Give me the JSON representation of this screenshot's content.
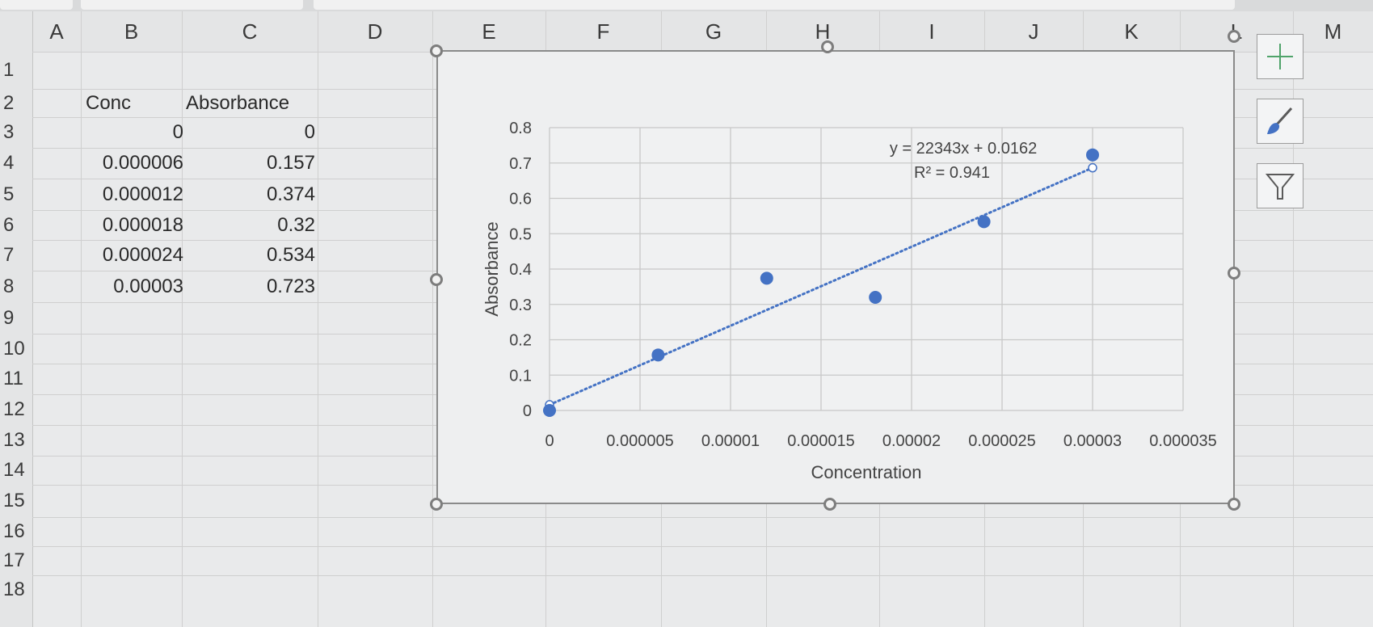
{
  "columns": [
    "A",
    "B",
    "C",
    "D",
    "E",
    "F",
    "G",
    "H",
    "I",
    "J",
    "K",
    "L",
    "M"
  ],
  "rows": [
    "1",
    "2",
    "3",
    "4",
    "5",
    "6",
    "7",
    "8",
    "9",
    "10",
    "11",
    "12",
    "13",
    "14",
    "15",
    "16",
    "17",
    "18"
  ],
  "table": {
    "headers": [
      "Conc",
      "Absorbance"
    ],
    "rows": [
      [
        "0",
        "0"
      ],
      [
        "0.000006",
        "0.157"
      ],
      [
        "0.000012",
        "0.374"
      ],
      [
        "0.000018",
        "0.32"
      ],
      [
        "0.000024",
        "0.534"
      ],
      [
        "0.00003",
        "0.723"
      ]
    ]
  },
  "chart_data": {
    "type": "scatter",
    "title": "",
    "xlabel": "Concentration",
    "ylabel": "Absorbance",
    "xlim": [
      0,
      3.5e-05
    ],
    "ylim": [
      0,
      0.8
    ],
    "x_ticks": [
      "0",
      "0.000005",
      "0.00001",
      "0.000015",
      "0.00002",
      "0.000025",
      "0.00003",
      "0.000035"
    ],
    "y_ticks": [
      "0",
      "0.1",
      "0.2",
      "0.3",
      "0.4",
      "0.5",
      "0.6",
      "0.7",
      "0.8"
    ],
    "grid": true,
    "series": [
      {
        "x": [
          0,
          6e-06,
          1.2e-05,
          1.8e-05,
          2.4e-05,
          3e-05
        ],
        "y": [
          0,
          0.157,
          0.374,
          0.32,
          0.534,
          0.723
        ],
        "color": "#4472c4"
      }
    ],
    "trendline": {
      "type": "linear",
      "slope": 22343,
      "intercept": 0.0162,
      "style": "dotted",
      "equation": "y = 22343x + 0.0162",
      "r_squared": "R² = 0.941"
    }
  },
  "chart_tools": [
    "chart-elements-plus-icon",
    "chart-styles-brush-icon",
    "chart-filters-funnel-icon"
  ],
  "colors": {
    "marker": "#4472c4",
    "grid": "#c8c8c8",
    "trendline": "#4472c4"
  }
}
